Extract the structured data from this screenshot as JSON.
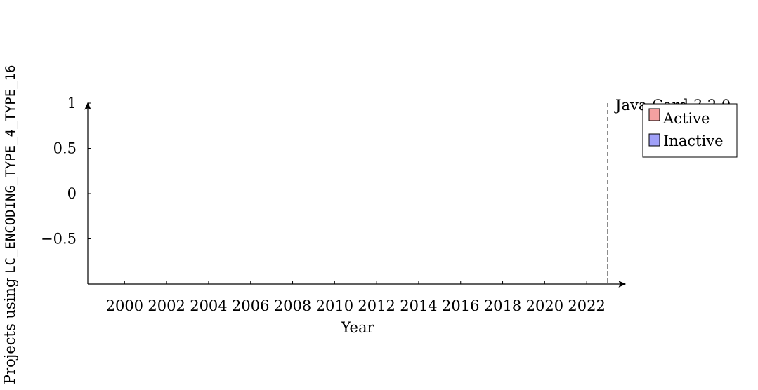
{
  "chart_data": {
    "type": "bar",
    "title": "",
    "xlabel": "Year",
    "ylabel_prefix": "Projects using ",
    "ylabel_code": "LC_ENCODING_TYPE_4_TYPE_16",
    "x_ticks": [
      2000,
      2002,
      2004,
      2006,
      2008,
      2010,
      2012,
      2014,
      2016,
      2018,
      2020,
      2022
    ],
    "xlim": [
      1998.25,
      2023.5
    ],
    "y_ticks": [
      1,
      0.5,
      0,
      -0.5
    ],
    "y_tick_labels": [
      "1",
      "0.5",
      "0",
      "−0.5"
    ],
    "ylim": [
      -1,
      1
    ],
    "series": [
      {
        "name": "Active",
        "color": "#f4a0a0",
        "values": []
      },
      {
        "name": "Inactive",
        "color": "#a0a0f8",
        "values": []
      }
    ],
    "annotations": [
      {
        "x": 2023,
        "label": "Java Card 3.2.0",
        "style": "dashed"
      }
    ],
    "legend_position": "top-right",
    "grid": false
  }
}
